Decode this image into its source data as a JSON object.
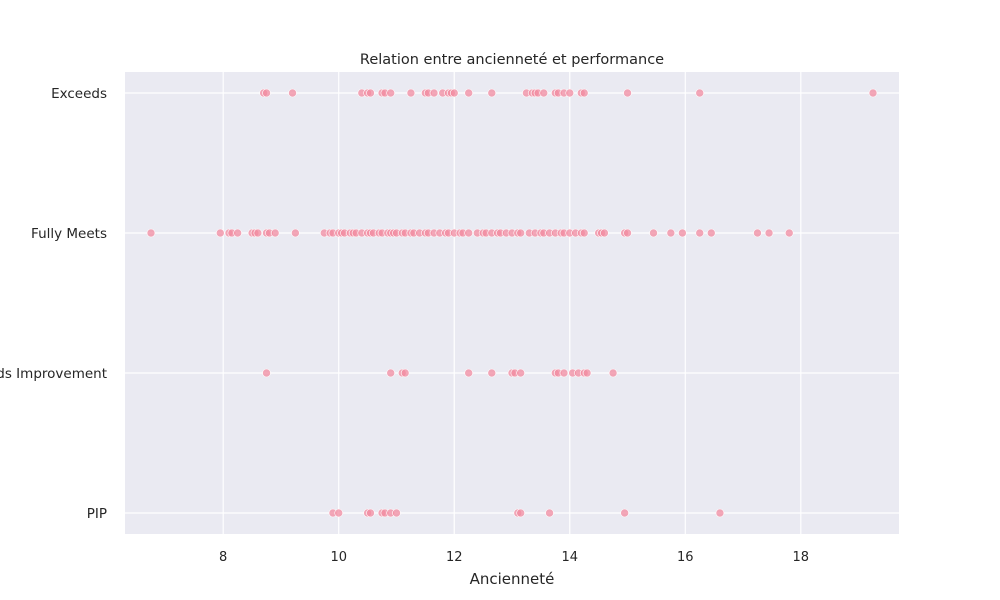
{
  "chart_data": {
    "type": "scatter",
    "title": "Relation entre ancienneté et performance",
    "xlabel": "Ancienneté",
    "ylabel": "",
    "xlim": [
      6.3,
      19.7
    ],
    "xticks": [
      8,
      10,
      12,
      14,
      16,
      18
    ],
    "categories": [
      "Exceeds",
      "Fully Meets",
      "Needs Improvement",
      "PIP"
    ],
    "grid": true,
    "background": "#eaeaf2",
    "grid_color": "#ffffff",
    "point_color": "#f28ba0",
    "series": [
      {
        "category": "Exceeds",
        "x": [
          8.7,
          8.75,
          9.2,
          10.4,
          10.5,
          10.55,
          10.75,
          10.8,
          10.9,
          11.25,
          11.5,
          11.55,
          11.65,
          11.8,
          11.9,
          11.95,
          12.0,
          12.25,
          12.65,
          13.25,
          13.35,
          13.4,
          13.45,
          13.55,
          13.75,
          13.8,
          13.9,
          14.0,
          14.2,
          14.25,
          15.0,
          16.25,
          19.25
        ]
      },
      {
        "category": "Fully Meets",
        "x": [
          6.75,
          7.95,
          8.1,
          8.15,
          8.25,
          8.5,
          8.55,
          8.6,
          8.75,
          8.8,
          8.9,
          9.25,
          9.75,
          9.85,
          9.9,
          10.0,
          10.05,
          10.1,
          10.2,
          10.25,
          10.3,
          10.4,
          10.5,
          10.55,
          10.6,
          10.7,
          10.75,
          10.85,
          10.9,
          10.95,
          11.0,
          11.1,
          11.15,
          11.25,
          11.3,
          11.4,
          11.5,
          11.55,
          11.65,
          11.75,
          11.85,
          11.9,
          12.0,
          12.1,
          12.15,
          12.25,
          12.4,
          12.5,
          12.55,
          12.65,
          12.75,
          12.8,
          12.9,
          13.0,
          13.1,
          13.15,
          13.3,
          13.4,
          13.5,
          13.55,
          13.65,
          13.75,
          13.85,
          13.9,
          14.0,
          14.1,
          14.2,
          14.25,
          14.5,
          14.55,
          14.6,
          14.95,
          15.0,
          15.45,
          15.75,
          15.95,
          16.25,
          16.45,
          17.25,
          17.45,
          17.8
        ]
      },
      {
        "category": "Needs Improvement",
        "x": [
          8.75,
          10.9,
          11.1,
          11.15,
          12.25,
          12.65,
          13.0,
          13.05,
          13.15,
          13.75,
          13.8,
          13.9,
          14.05,
          14.15,
          14.25,
          14.3,
          14.75
        ]
      },
      {
        "category": "PIP",
        "x": [
          9.9,
          10.0,
          10.5,
          10.55,
          10.75,
          10.8,
          10.9,
          11.0,
          13.1,
          13.15,
          13.65,
          14.95,
          16.6
        ]
      }
    ]
  }
}
